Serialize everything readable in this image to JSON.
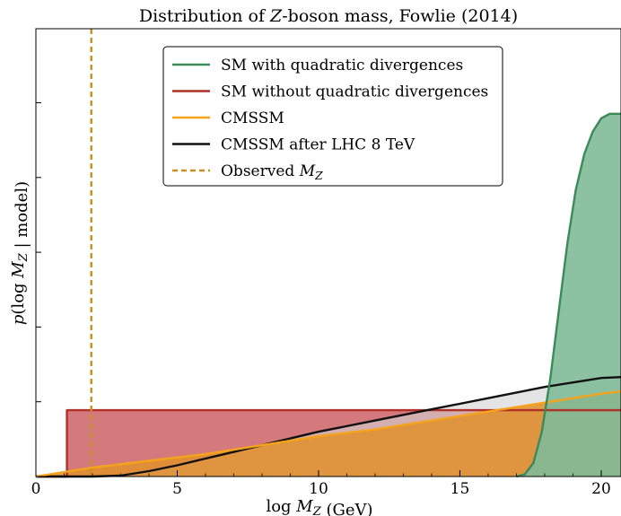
{
  "chart_data": {
    "type": "area",
    "title": "Distribution of Z-boson mass, Fowlie (2014)",
    "xlabel": "log M_Z (GeV)",
    "ylabel": "p(log M_Z | model)",
    "xlim": [
      0,
      20.7
    ],
    "ylim": [
      0,
      1.0
    ],
    "x_ticks": [
      "0",
      "5",
      "10",
      "15",
      "20"
    ],
    "grid": false,
    "legend_position": "top-center",
    "observed_line": {
      "name": "Observed M_Z",
      "x": 1.96,
      "color": "#c8901e",
      "style": "dashed"
    },
    "series": [
      {
        "name": "SM with quadratic divergences",
        "color": "#3c8a5a",
        "fill": "#7fba98",
        "x": [
          17.0,
          17.3,
          17.6,
          17.9,
          18.2,
          18.5,
          18.8,
          19.1,
          19.4,
          19.7,
          20.0,
          20.3,
          20.5,
          20.7
        ],
        "y": [
          0.0,
          0.005,
          0.03,
          0.1,
          0.22,
          0.37,
          0.52,
          0.64,
          0.72,
          0.77,
          0.8,
          0.81,
          0.81,
          0.81
        ]
      },
      {
        "name": "SM without quadratic divergences",
        "color": "#b03028",
        "fill": "#cf6b6e",
        "x": [
          0,
          1.1,
          1.1,
          20.7
        ],
        "y": [
          0,
          0,
          0.148,
          0.148
        ]
      },
      {
        "name": "CMSSM",
        "color": "#f5a31b",
        "fill": "#e0902c",
        "x": [
          0,
          2,
          4,
          6,
          8,
          10,
          12,
          14,
          16,
          18,
          20,
          20.7
        ],
        "y": [
          0,
          0.02,
          0.035,
          0.05,
          0.07,
          0.09,
          0.105,
          0.125,
          0.145,
          0.165,
          0.185,
          0.19
        ]
      },
      {
        "name": "CMSSM after LHC 8 TeV",
        "color": "#111111",
        "fill": "#d2d2d2",
        "x": [
          0,
          2,
          3,
          4,
          5,
          6,
          8,
          10,
          12,
          14,
          16,
          18,
          19,
          20,
          20.7
        ],
        "y": [
          0,
          0,
          0.002,
          0.012,
          0.025,
          0.04,
          0.07,
          0.1,
          0.125,
          0.15,
          0.175,
          0.2,
          0.21,
          0.22,
          0.222
        ]
      }
    ]
  }
}
